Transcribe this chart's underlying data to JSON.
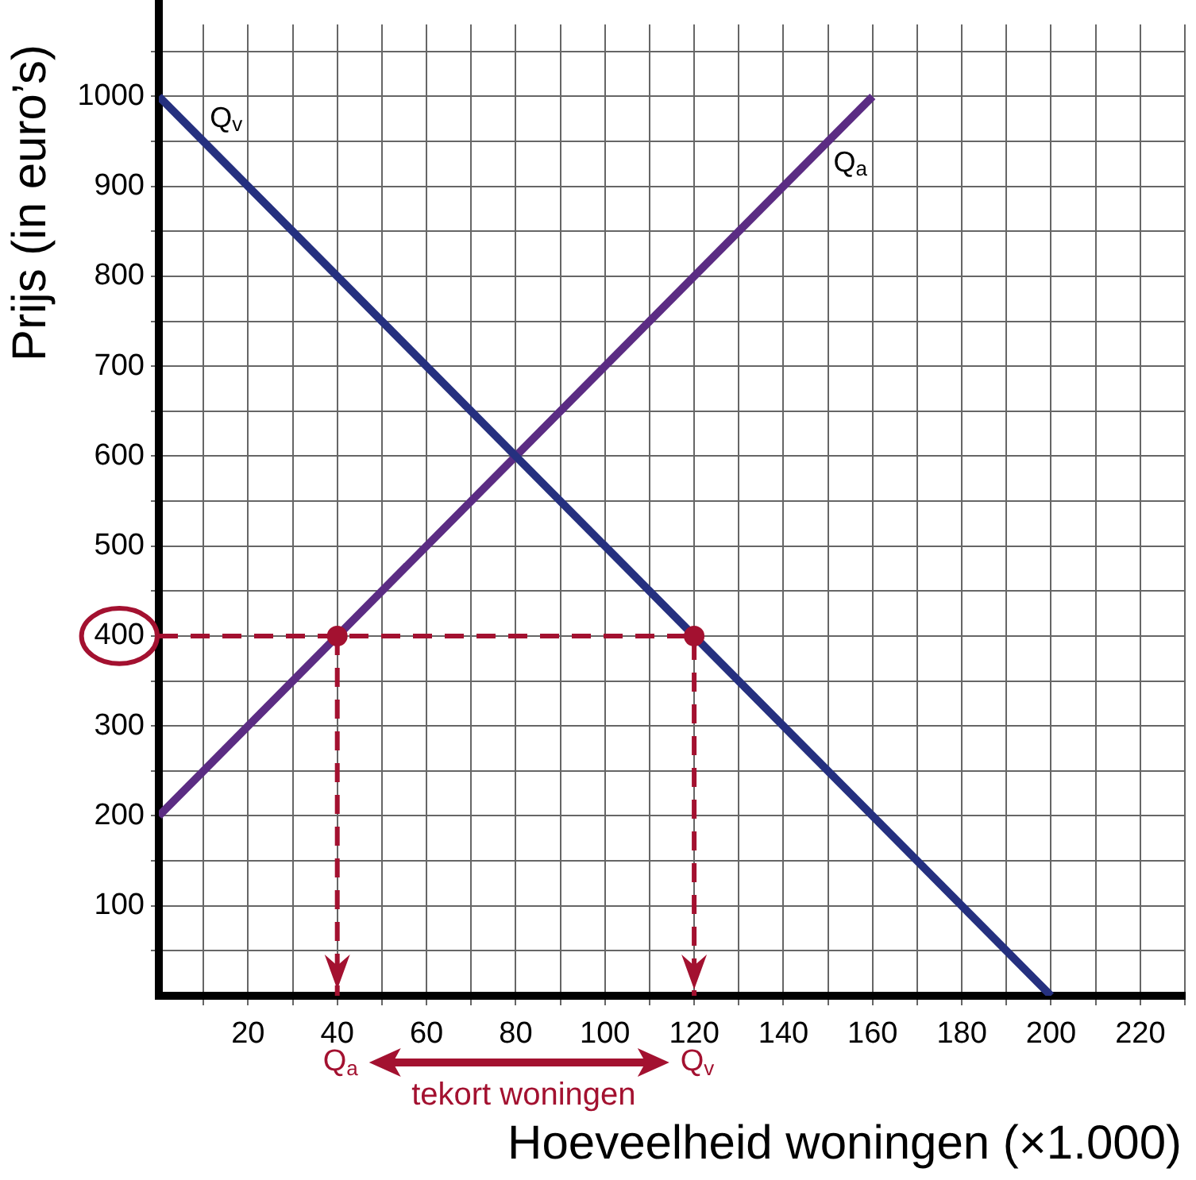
{
  "chart_data": {
    "type": "line",
    "xlabel": "Hoeveelheid woningen (×1.000)",
    "ylabel": "Prijs (in euro’s)",
    "xlim": [
      0,
      230
    ],
    "xticks": [
      {
        "value": 10,
        "label": null
      },
      20,
      {
        "value": 30,
        "label": null
      },
      40,
      {
        "value": 50,
        "label": null
      },
      60,
      {
        "value": 70,
        "label": null
      },
      80,
      {
        "value": 90,
        "label": null
      },
      100,
      {
        "value": 110,
        "label": null
      },
      120,
      {
        "value": 130,
        "label": null
      },
      140,
      {
        "value": 150,
        "label": null
      },
      160,
      {
        "value": 170,
        "label": null
      },
      180,
      {
        "value": 190,
        "label": null
      },
      200,
      {
        "value": 210,
        "label": null
      },
      220,
      {
        "value": 230,
        "label": null
      }
    ],
    "ylim": [
      0,
      1080
    ],
    "yticks": [
      {
        "value": 50,
        "label": null
      },
      100,
      {
        "value": 150,
        "label": null
      },
      200,
      {
        "value": 250,
        "label": null
      },
      300,
      {
        "value": 350,
        "label": null
      },
      400,
      {
        "value": 450,
        "label": null
      },
      500,
      {
        "value": 550,
        "label": null
      },
      600,
      {
        "value": 650,
        "label": null
      },
      700,
      {
        "value": 750,
        "label": null
      },
      800,
      {
        "value": 850,
        "label": null
      },
      900,
      {
        "value": 950,
        "label": null
      },
      1000,
      {
        "value": 1050,
        "label": null
      }
    ],
    "grid": true,
    "series": [
      {
        "name": "Q$_{v}$",
        "color": "#25307f",
        "x": [
          0,
          200
        ],
        "values": [
          1000,
          0
        ],
        "marker": "none"
      },
      {
        "name": "Q$_{a}$",
        "color": "#5b2c83",
        "x": [
          0,
          160
        ],
        "values": [
          200,
          1000
        ],
        "marker": "none"
      },
      {
        "color": "#a31130",
        "x": [
          0,
          120,
          120
        ],
        "values": [
          400,
          400,
          0
        ],
        "line_style": "dashed",
        "marker": "none"
      },
      {
        "color": "#a31130",
        "x": [
          40,
          40
        ],
        "values": [
          400,
          0
        ],
        "line_style": "dashed",
        "marker": "none"
      },
      {
        "type": "scatter",
        "color": "#a31130",
        "x": [
          40,
          120
        ],
        "values": [
          400,
          400
        ],
        "marker": "circle"
      }
    ],
    "annotations": [
      "Q$_{a}$",
      "Q$_{v}$",
      "tekort woningen"
    ]
  }
}
